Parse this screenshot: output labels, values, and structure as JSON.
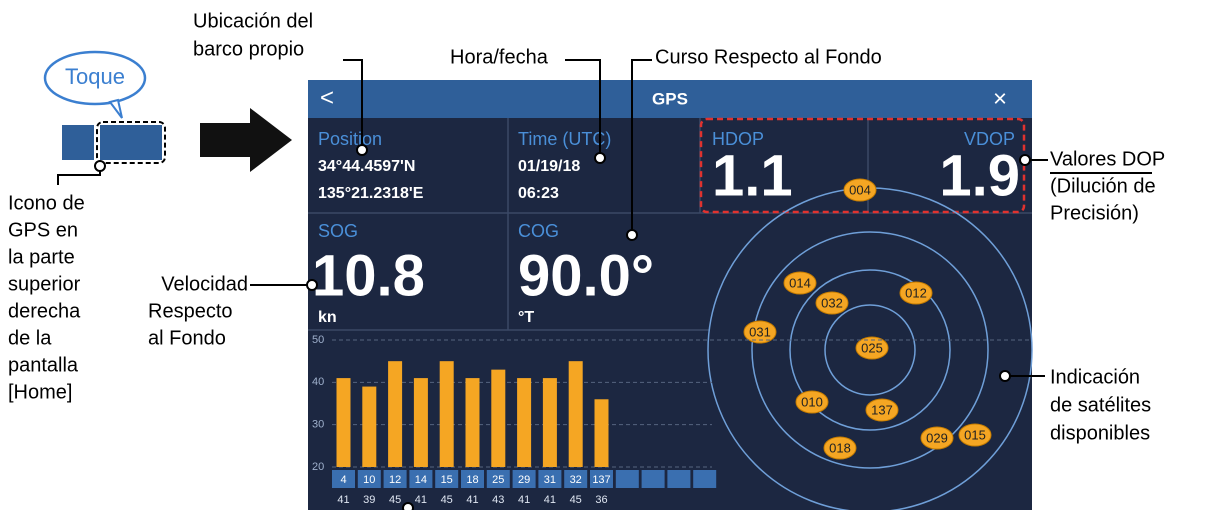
{
  "annotations": {
    "own_ship": [
      "Ubicación del",
      "barco propio"
    ],
    "time_date": "Hora/fecha",
    "cog": "Curso Respecto al Fondo",
    "tap": "Toque",
    "gps_icon": [
      "Icono de",
      "GPS en",
      "la parte",
      "superior",
      "derecha",
      "de la",
      "pantalla",
      "[Home]"
    ],
    "sog": [
      "Velocidad",
      "Respecto",
      "al Fondo"
    ],
    "dop": [
      "Valores DOP",
      "(Dilución de",
      "Precisión)"
    ],
    "satellites": [
      "Indicación",
      "de satélites",
      "disponibles"
    ]
  },
  "screen": {
    "back": "<",
    "title": "GPS",
    "close": "×",
    "position_label": "Position",
    "latitude": "34°44.4597'N",
    "longitude": "135°21.2318'E",
    "time_label": "Time (UTC)",
    "date": "01/19/18",
    "time": "06:23",
    "hdop_label": "HDOP",
    "hdop": "1.1",
    "vdop_label": "VDOP",
    "vdop": "1.9",
    "sog_label": "SOG",
    "sog": "10.8",
    "sog_unit": "kn",
    "cog_label": "COG",
    "cog": "90.0°",
    "cog_unit": "°T"
  },
  "satellites": [
    "004",
    "014",
    "032",
    "012",
    "031",
    "025",
    "010",
    "137",
    "018",
    "029",
    "015"
  ],
  "chart_data": {
    "type": "bar",
    "categories": [
      "4",
      "10",
      "12",
      "14",
      "15",
      "18",
      "25",
      "29",
      "31",
      "32",
      "137"
    ],
    "values": [
      41,
      39,
      45,
      41,
      45,
      41,
      43,
      41,
      41,
      45,
      36
    ],
    "color": "#f5a623",
    "ylim": [
      20,
      50
    ],
    "yticks": [
      20,
      30,
      40,
      50
    ],
    "grid": true
  }
}
